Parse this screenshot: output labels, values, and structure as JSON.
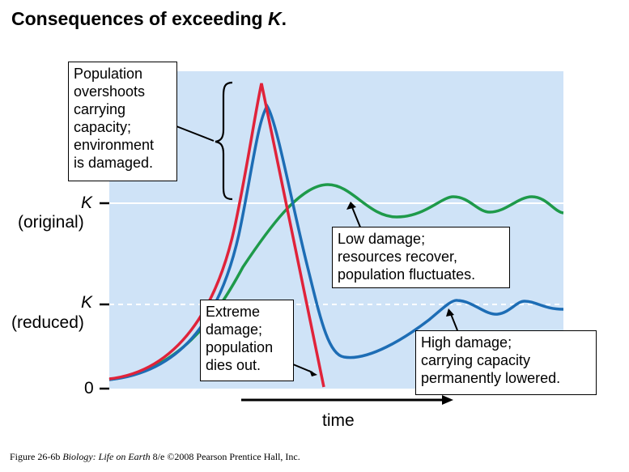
{
  "title": {
    "text": "Consequences of exceeding ",
    "k": "K",
    "dot": "."
  },
  "axis": {
    "k_original_k": "K",
    "k_original_label": "(original)",
    "k_reduced_k": "K",
    "k_reduced_label": "(reduced)",
    "zero_label": "0",
    "time_label": "time"
  },
  "callouts": {
    "overshoot": "Population\novershoots\ncarrying\ncapacity;\nenvironment\nis damaged.",
    "low_damage": "Low damage;\nresources recover,\npopulation fluctuates.",
    "extreme_damage": "Extreme\ndamage;\npopulation\ndies out.",
    "high_damage": "High damage;\ncarrying capacity\npermanently lowered."
  },
  "caption": {
    "fig": "Figure 26-6b",
    "book": "Biology: Life on Earth",
    "rest": " 8/e  ©2008 Pearson Prentice Hall, Inc."
  },
  "colors": {
    "background_panel": "#cfe3f7",
    "low_damage_curve": "#1e9a4a",
    "high_damage_curve": "#1d6db5",
    "extreme_damage_curve": "#e0233a"
  }
}
